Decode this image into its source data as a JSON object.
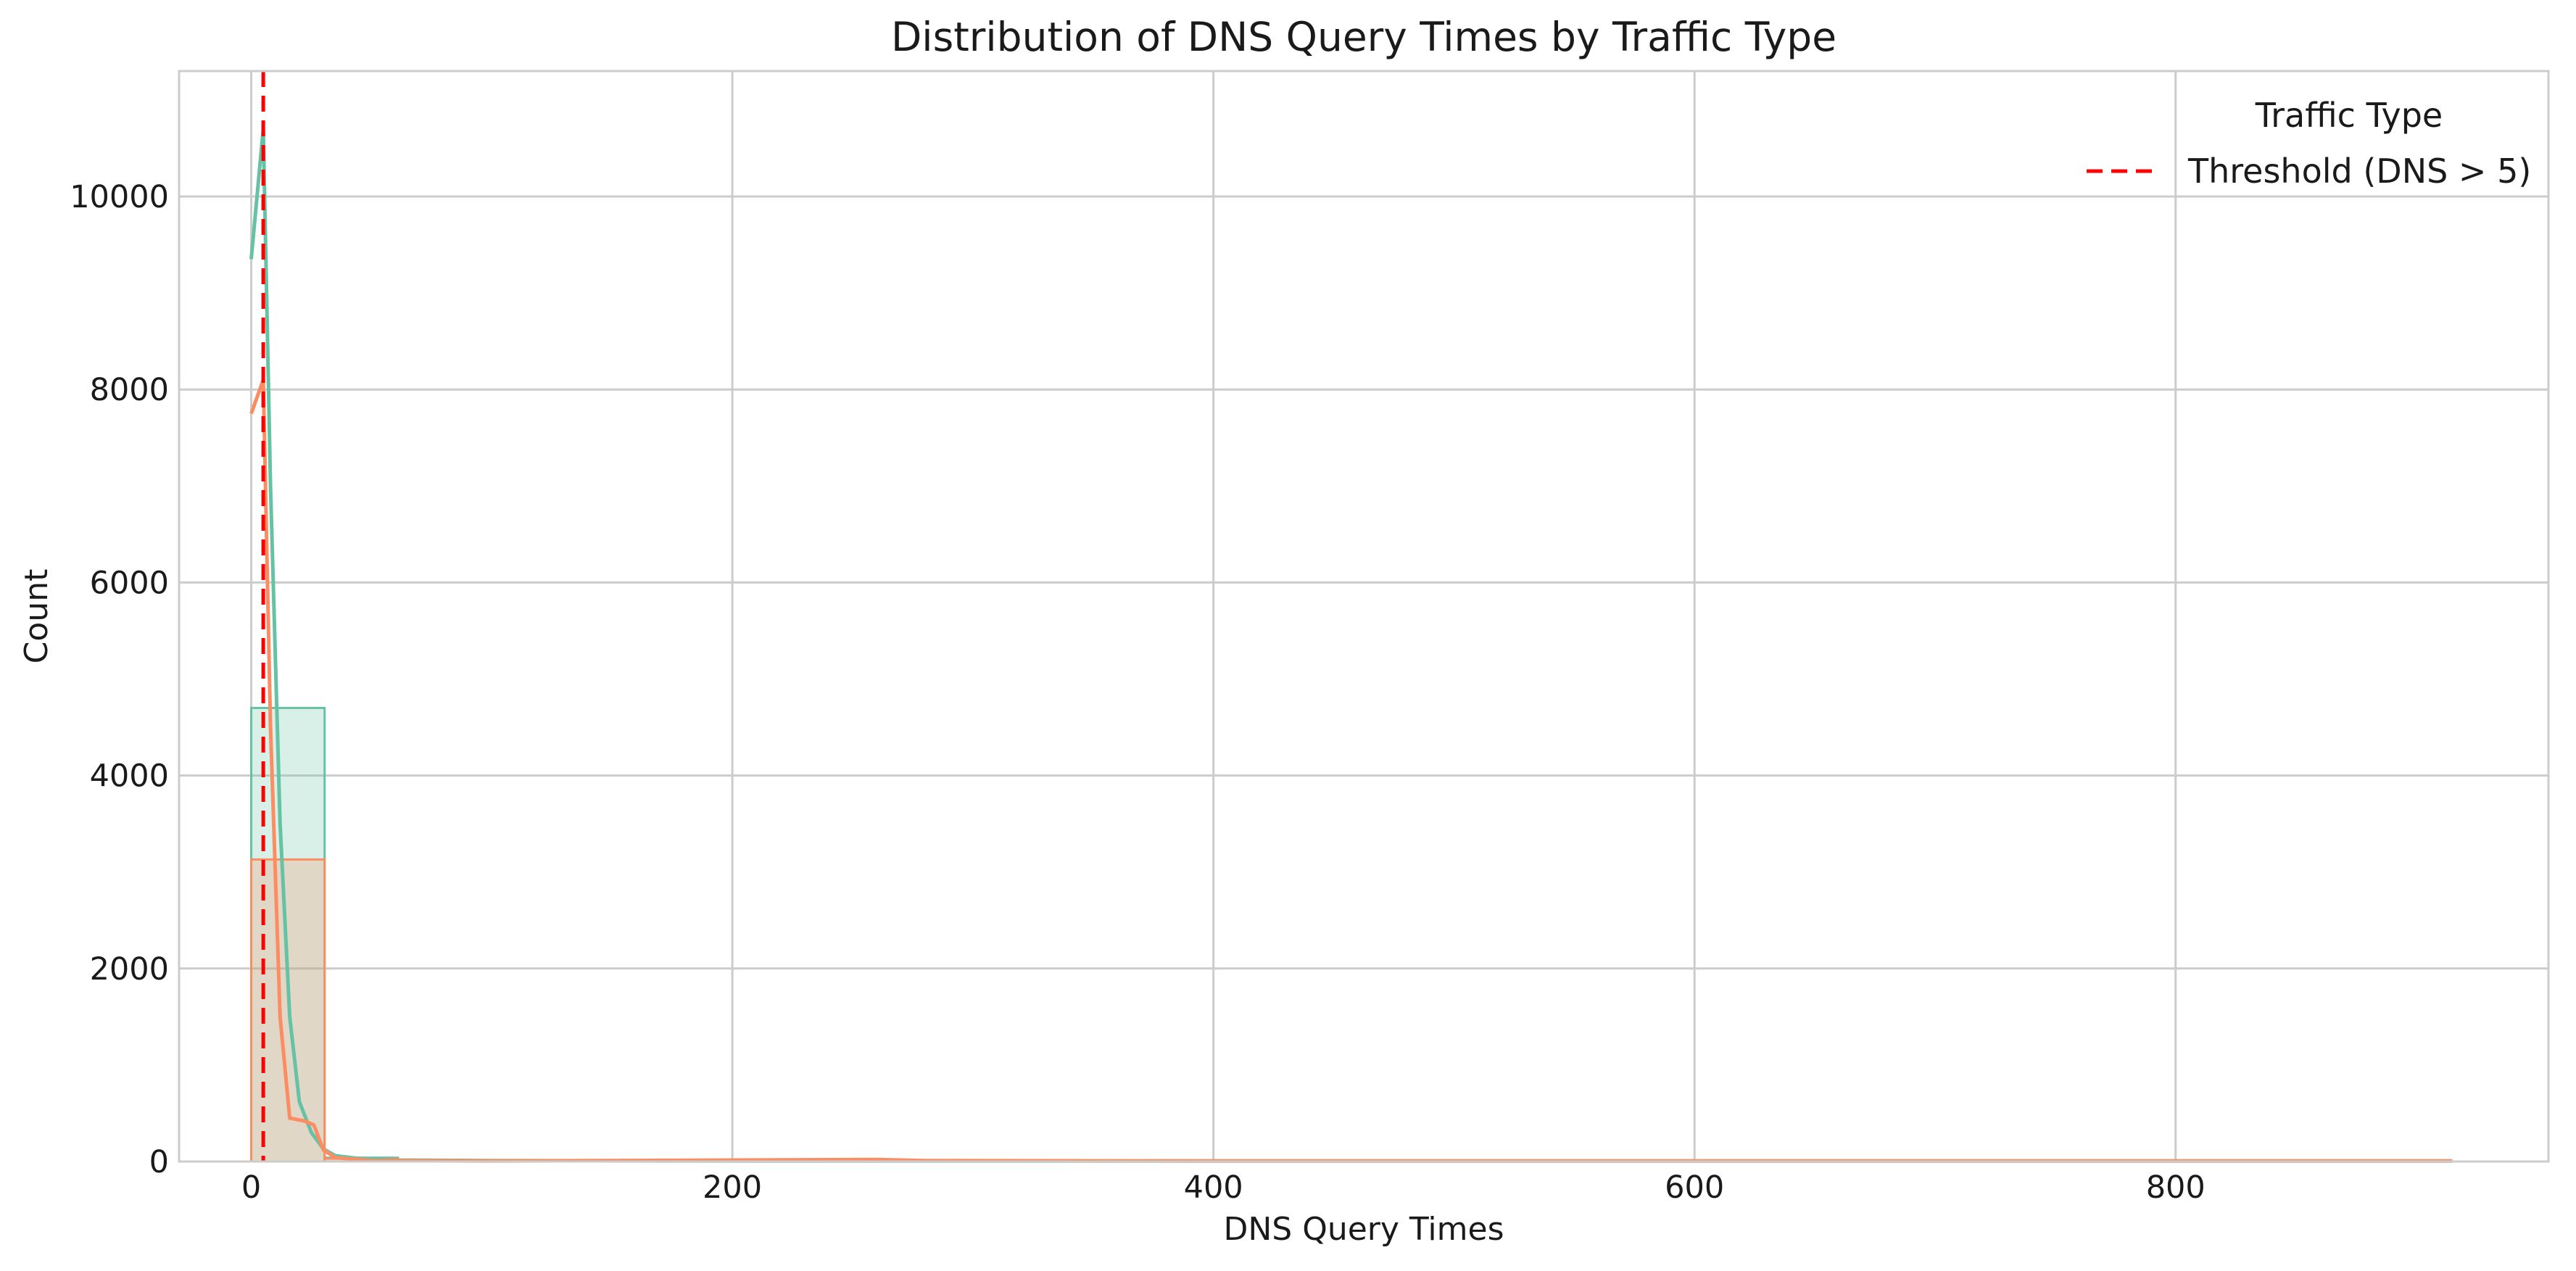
{
  "chart_data": {
    "type": "histogram",
    "title": "Distribution of DNS Query Times by Traffic Type",
    "xlabel": "DNS Query Times",
    "ylabel": "Count",
    "xlim": [
      -30,
      955
    ],
    "ylim": [
      0,
      11300
    ],
    "x_ticks": [
      0,
      200,
      400,
      600,
      800
    ],
    "x_tick_labels": [
      "0",
      "200",
      "400",
      "600",
      "800"
    ],
    "y_ticks": [
      0,
      2000,
      4000,
      6000,
      8000,
      10000
    ],
    "y_tick_labels": [
      "0",
      "2000",
      "4000",
      "6000",
      "8000",
      "10000"
    ],
    "grid": true,
    "legend": {
      "title": "Traffic Type",
      "placement": "top-right",
      "entries": [
        {
          "label": "Threshold (DNS > 5)",
          "style": "dashed",
          "color": "#ff0000"
        }
      ]
    },
    "series": [
      {
        "color": "#66c2a5",
        "bins": [
          {
            "x0": 0,
            "x1": 30.5,
            "count": 4700
          },
          {
            "x0": 30.5,
            "x1": 61,
            "count": 40
          },
          {
            "x0": 61,
            "x1": 91.5,
            "count": 10
          },
          {
            "x0": 91.5,
            "x1": 122,
            "count": 5
          }
        ],
        "kde": [
          {
            "x": 0,
            "y": 9350
          },
          {
            "x": 5,
            "y": 10700
          },
          {
            "x": 8,
            "y": 7000
          },
          {
            "x": 12,
            "y": 3500
          },
          {
            "x": 16,
            "y": 1500
          },
          {
            "x": 20,
            "y": 620
          },
          {
            "x": 25,
            "y": 300
          },
          {
            "x": 30,
            "y": 130
          },
          {
            "x": 35,
            "y": 60
          },
          {
            "x": 45,
            "y": 30
          },
          {
            "x": 60,
            "y": 15
          },
          {
            "x": 100,
            "y": 10
          },
          {
            "x": 200,
            "y": 5
          },
          {
            "x": 400,
            "y": 5
          },
          {
            "x": 600,
            "y": 5
          },
          {
            "x": 800,
            "y": 5
          },
          {
            "x": 915,
            "y": 5
          }
        ]
      },
      {
        "color": "#fc8d62",
        "bins": [
          {
            "x0": 0,
            "x1": 30.5,
            "count": 3130
          },
          {
            "x0": 30.5,
            "x1": 61,
            "count": 30
          },
          {
            "x0": 244,
            "x1": 274.5,
            "count": 15
          }
        ],
        "kde": [
          {
            "x": 0,
            "y": 7750
          },
          {
            "x": 5,
            "y": 8100
          },
          {
            "x": 8,
            "y": 4500
          },
          {
            "x": 12,
            "y": 1500
          },
          {
            "x": 16,
            "y": 450
          },
          {
            "x": 22,
            "y": 420
          },
          {
            "x": 26,
            "y": 380
          },
          {
            "x": 30,
            "y": 120
          },
          {
            "x": 35,
            "y": 40
          },
          {
            "x": 50,
            "y": 10
          },
          {
            "x": 100,
            "y": 5
          },
          {
            "x": 260,
            "y": 20
          },
          {
            "x": 280,
            "y": 10
          },
          {
            "x": 400,
            "y": 5
          },
          {
            "x": 600,
            "y": 5
          },
          {
            "x": 915,
            "y": 5
          }
        ]
      }
    ],
    "threshold": {
      "x": 5,
      "label": "Threshold (DNS > 5)",
      "color": "#ff0000"
    }
  }
}
